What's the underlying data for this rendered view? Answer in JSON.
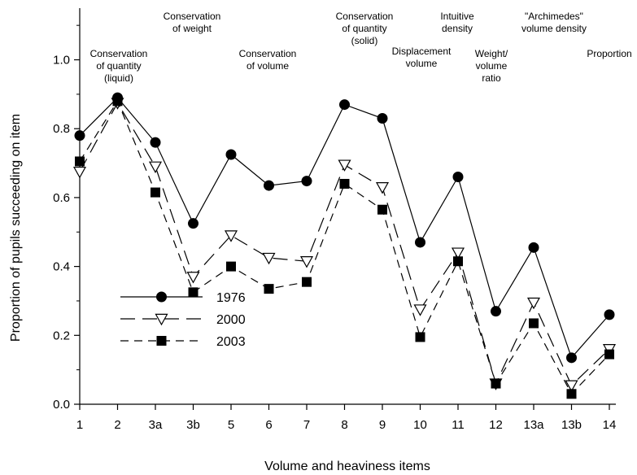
{
  "chart_data": {
    "type": "line",
    "xlabel": "Volume and heaviness items",
    "ylabel": "Proportion of pupils succeeding on item",
    "categories": [
      "1",
      "2",
      "3a",
      "3b",
      "5",
      "6",
      "7",
      "8",
      "9",
      "10",
      "11",
      "12",
      "13a",
      "13b",
      "14"
    ],
    "ylim": [
      0,
      1.15
    ],
    "yticks": [
      "0.0",
      "0.2",
      "0.4",
      "0.6",
      "0.8",
      "1.0"
    ],
    "grid": false,
    "legend_position": "bottom-left",
    "series": [
      {
        "name": "1976",
        "line": "solid",
        "marker": "filled-circle",
        "values": [
          0.78,
          0.89,
          0.76,
          0.525,
          0.725,
          0.635,
          0.648,
          0.87,
          0.83,
          0.47,
          0.66,
          0.27,
          0.455,
          0.135,
          0.26
        ]
      },
      {
        "name": "2000",
        "line": "long-dash",
        "marker": "open-triangle-down",
        "values": [
          0.675,
          0.875,
          0.69,
          0.37,
          0.49,
          0.425,
          0.415,
          0.695,
          0.63,
          0.275,
          0.44,
          0.06,
          0.295,
          0.055,
          0.16
        ]
      },
      {
        "name": "2003",
        "line": "short-dash",
        "marker": "filled-square",
        "values": [
          0.705,
          0.88,
          0.615,
          0.325,
          0.4,
          0.335,
          0.355,
          0.64,
          0.565,
          0.195,
          0.415,
          0.06,
          0.235,
          0.03,
          0.145
        ]
      }
    ],
    "annotations": [
      {
        "lines": [
          "Conservation",
          "of quantity",
          "(liquid)"
        ],
        "item": "2"
      },
      {
        "lines": [
          "Conservation",
          "of weight"
        ],
        "item": "3a"
      },
      {
        "lines": [
          "Conservation",
          "of volume"
        ],
        "item": "6"
      },
      {
        "lines": [
          "Conservation",
          "of quantity",
          "(solid)"
        ],
        "item": "8"
      },
      {
        "lines": [
          "Displacement",
          "volume"
        ],
        "item": "9"
      },
      {
        "lines": [
          "Intuitive",
          "density"
        ],
        "item": "11"
      },
      {
        "lines": [
          "Weight/",
          "volume",
          "ratio"
        ],
        "item": "12"
      },
      {
        "lines": [
          "\"Archimedes\"",
          "volume density"
        ],
        "item": "13a"
      },
      {
        "lines": [
          "Proportion"
        ],
        "item": "14"
      }
    ]
  }
}
